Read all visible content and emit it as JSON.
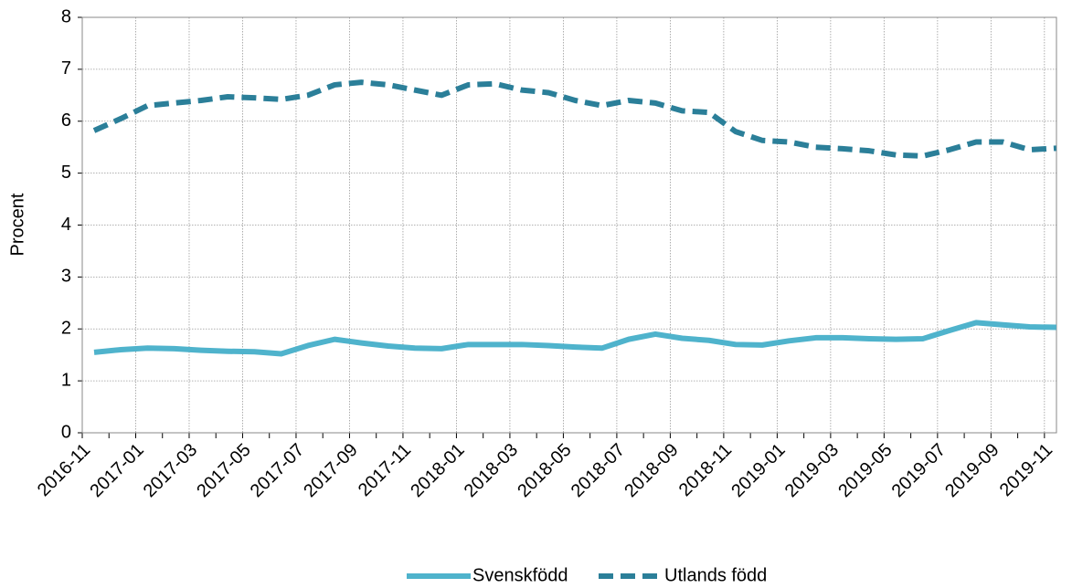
{
  "chart_data": {
    "type": "line",
    "ylabel": "Procent",
    "categories": [
      "2016-11",
      null,
      "2017-01",
      null,
      "2017-03",
      null,
      "2017-05",
      null,
      "2017-07",
      null,
      "2017-09",
      null,
      "2017-11",
      null,
      "2018-01",
      null,
      "2018-03",
      null,
      "2018-05",
      null,
      "2018-07",
      null,
      "2018-09",
      null,
      "2018-11",
      null,
      "2019-01",
      null,
      "2019-03",
      null,
      "2019-05",
      null,
      "2019-07",
      null,
      "2019-09",
      null,
      "2019-11"
    ],
    "series": [
      {
        "name": "Svenskfödd",
        "color": "#4fb3cc",
        "dash": false,
        "values": [
          1.55,
          1.6,
          1.63,
          1.62,
          1.59,
          1.57,
          1.56,
          1.52,
          1.68,
          1.8,
          1.73,
          1.67,
          1.63,
          1.62,
          1.7,
          1.7,
          1.7,
          1.68,
          1.65,
          1.63,
          1.8,
          1.9,
          1.82,
          1.78,
          1.7,
          1.69,
          1.77,
          1.83,
          1.83,
          1.81,
          1.8,
          1.81,
          1.97,
          2.12,
          2.08,
          2.04,
          2.03
        ]
      },
      {
        "name": "Utlands född",
        "color": "#2b7f99",
        "dash": true,
        "values": [
          5.82,
          6.05,
          6.3,
          6.35,
          6.4,
          6.47,
          6.45,
          6.42,
          6.5,
          6.7,
          6.75,
          6.7,
          6.6,
          6.5,
          6.7,
          6.72,
          6.6,
          6.55,
          6.4,
          6.3,
          6.4,
          6.35,
          6.2,
          6.17,
          5.8,
          5.63,
          5.6,
          5.5,
          5.47,
          5.43,
          5.35,
          5.33,
          5.45,
          5.6,
          5.6,
          5.45,
          5.48
        ]
      }
    ],
    "ylim": [
      0,
      8
    ],
    "yticks": [
      0,
      1,
      2,
      3,
      4,
      5,
      6,
      7,
      8
    ],
    "grid": true
  }
}
